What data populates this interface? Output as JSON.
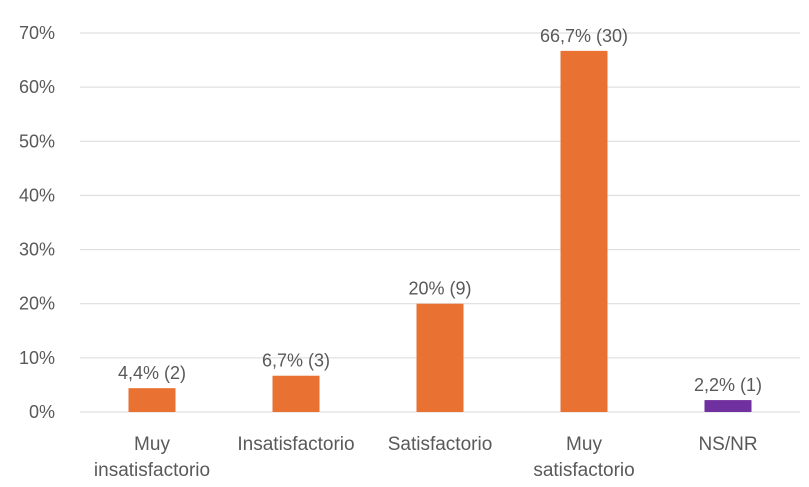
{
  "chart_data": {
    "type": "bar",
    "title": "",
    "xlabel": "",
    "ylabel": "",
    "ylim": [
      0,
      70
    ],
    "y_ticks": [
      "0%",
      "10%",
      "20%",
      "30%",
      "40%",
      "50%",
      "60%",
      "70%"
    ],
    "grid": true,
    "legend": "none",
    "categories": [
      [
        "Muy",
        "insatisfactorio"
      ],
      [
        "Insatisfactorio"
      ],
      [
        "Satisfactorio"
      ],
      [
        "Muy",
        "satisfactorio"
      ],
      [
        "NS/NR"
      ]
    ],
    "values": [
      4.4,
      6.7,
      20,
      66.7,
      2.2
    ],
    "data_labels": [
      "4,4% (2)",
      "6,7% (3)",
      "20% (9)",
      "66,7% (30)",
      "2,2% (1)"
    ],
    "colors": [
      "#E97132",
      "#E97132",
      "#E97132",
      "#E97132",
      "#7030A0"
    ],
    "gridline_color": "#D9D9D9"
  }
}
